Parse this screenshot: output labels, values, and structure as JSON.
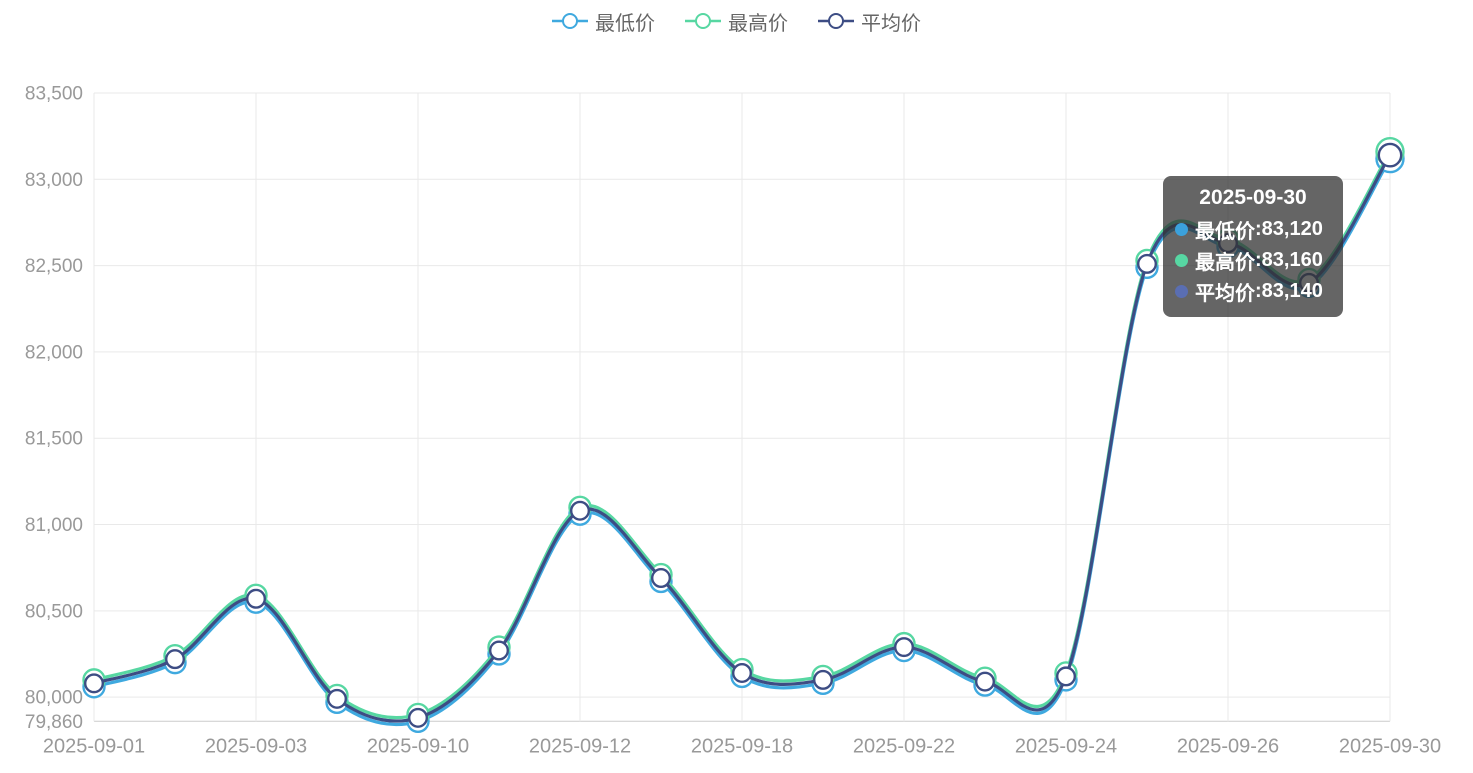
{
  "legend": {
    "items": [
      {
        "label": "最低价",
        "color": "#3FA9DF"
      },
      {
        "label": "最高价",
        "color": "#57D7A2"
      },
      {
        "label": "平均价",
        "color": "#3D4D84"
      }
    ]
  },
  "tooltip": {
    "title": "2025-09-30",
    "sep": ": ",
    "rows": [
      {
        "label": "最低价",
        "value": "83,120",
        "dot_color": "#3BA1DC"
      },
      {
        "label": "最高价",
        "value": "83,160",
        "dot_color": "#57D7A3"
      },
      {
        "label": "平均价",
        "value": "83,140",
        "dot_color": "#5A6EB2"
      }
    ]
  },
  "chart_data": {
    "type": "line",
    "smooth": true,
    "grid": true,
    "legend_position": "top",
    "categories": [
      "2025-09-01",
      "",
      "2025-09-03",
      "",
      "2025-09-10",
      "",
      "2025-09-12",
      "",
      "2025-09-18",
      "",
      "2025-09-22",
      "",
      "2025-09-24",
      "",
      "2025-09-26",
      "",
      "2025-09-30"
    ],
    "x_axis": {
      "visible_labels": [
        "2025-09-01",
        "2025-09-03",
        "2025-09-10",
        "2025-09-12",
        "2025-09-18",
        "2025-09-22",
        "2025-09-24",
        "2025-09-26",
        "2025-09-30"
      ]
    },
    "y_axis": {
      "min": 79860,
      "max": 83500,
      "ticks": [
        79860,
        80000,
        80500,
        81000,
        81500,
        82000,
        82500,
        83000,
        83500
      ],
      "tick_labels": [
        "79,860",
        "80,000",
        "80,500",
        "81,000",
        "81,500",
        "82,000",
        "82,500",
        "83,000",
        "83,500"
      ]
    },
    "series": [
      {
        "name": "最低价",
        "color": "#3FA9DF",
        "values": [
          80060,
          80200,
          80550,
          79970,
          79860,
          80250,
          81060,
          80670,
          80120,
          80080,
          80270,
          80070,
          80100,
          82490,
          82610,
          82380,
          83120
        ]
      },
      {
        "name": "最高价",
        "color": "#57D7A2",
        "values": [
          80100,
          80240,
          80590,
          80010,
          79900,
          80290,
          81100,
          80710,
          80160,
          80120,
          80310,
          80110,
          80140,
          82530,
          82650,
          82420,
          83160
        ]
      },
      {
        "name": "平均价",
        "color": "#3D4D84",
        "values": [
          80080,
          80220,
          80570,
          79990,
          79880,
          80270,
          81080,
          80690,
          80140,
          80100,
          80290,
          80090,
          80120,
          82510,
          82630,
          82400,
          83140
        ]
      }
    ],
    "hovered_point_index": 16
  },
  "style": {
    "grid_color": "#e9e9e9",
    "axis_line_color": "#cccccc",
    "axis_label_color": "#999999",
    "legend_text_color": "#666666"
  }
}
